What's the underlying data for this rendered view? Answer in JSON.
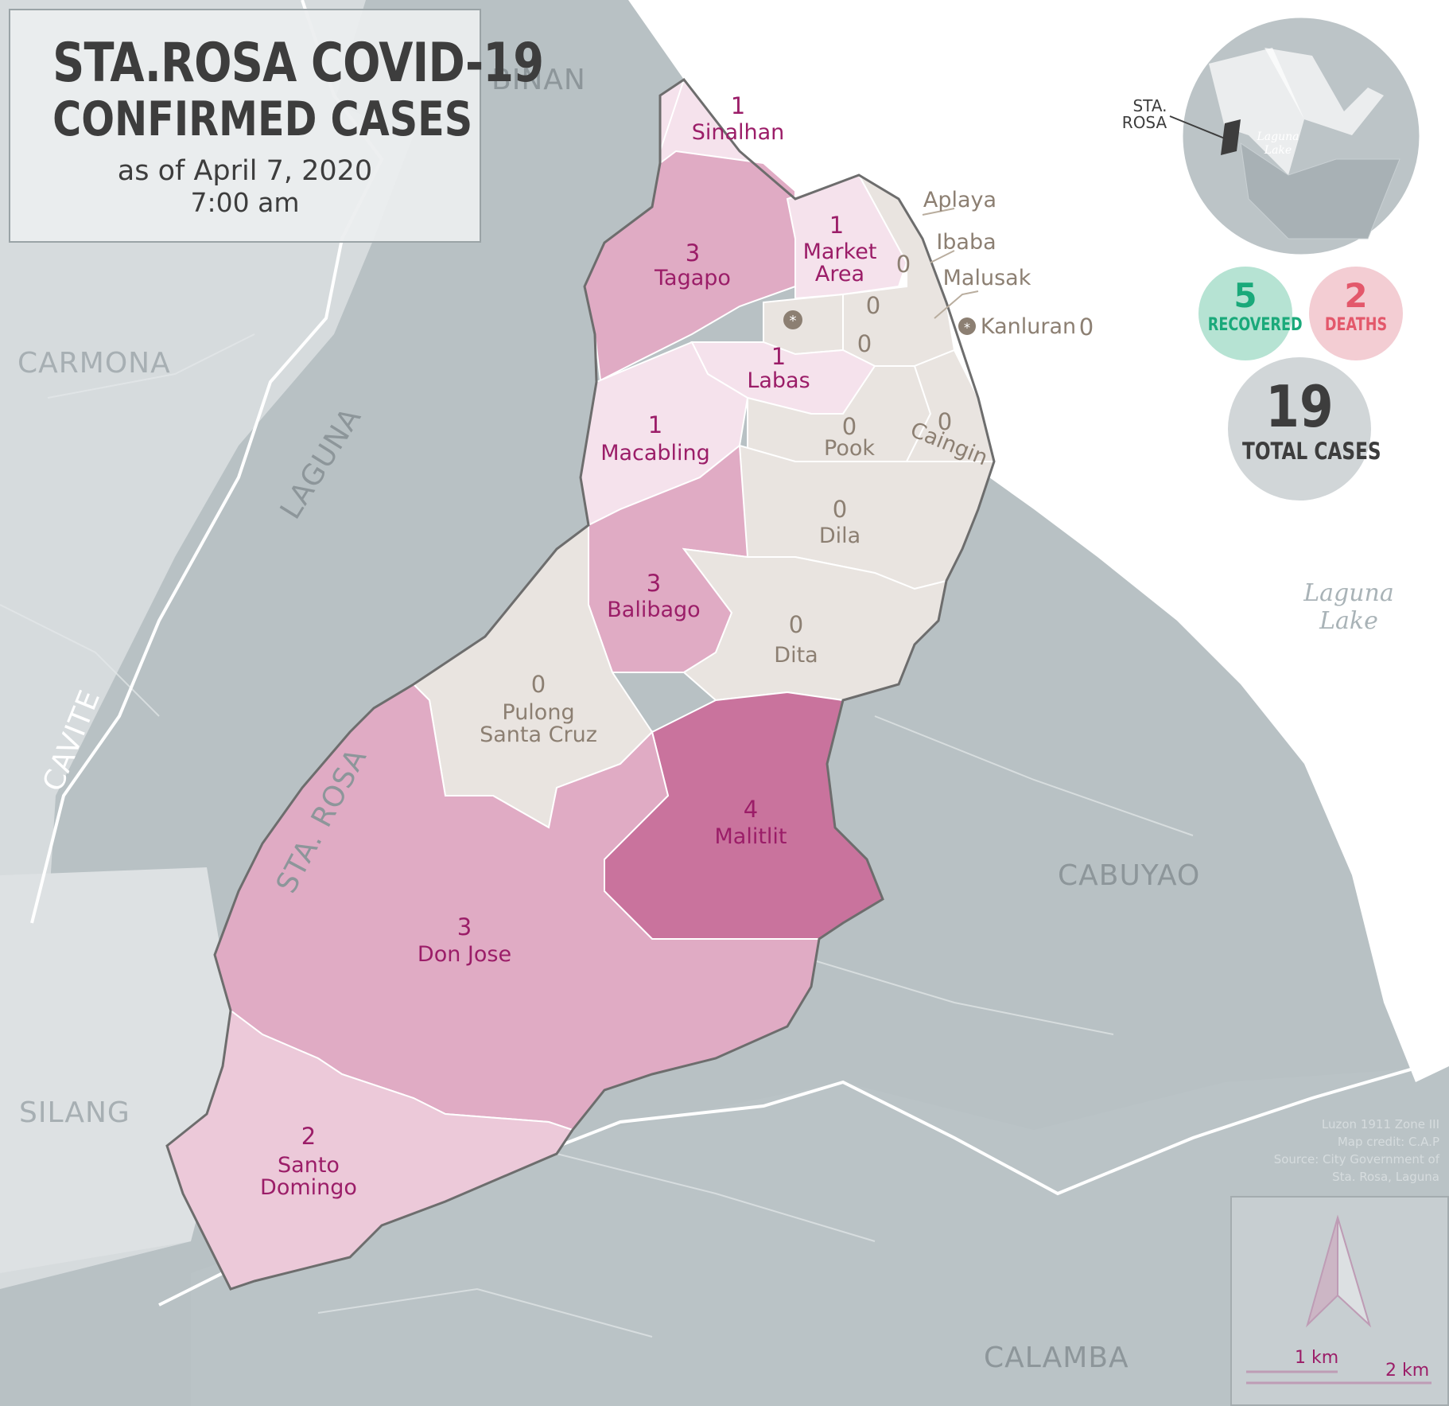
{
  "title": {
    "line1": "STA.ROSA COVID-19",
    "line2": "CONFIRMED CASES",
    "date": "as of April 7, 2020",
    "time": "7:00 am"
  },
  "stats": {
    "recovered": {
      "value": "5",
      "label": "RECOVERED",
      "color": "#1aa97a"
    },
    "deaths": {
      "value": "2",
      "label": "DEATHS",
      "color": "#e3586b"
    },
    "total": {
      "value": "19",
      "label": "TOTAL CASES"
    }
  },
  "inset": {
    "city_label_1": "STA.",
    "city_label_2": "ROSA",
    "lake_label_1": "Laguna",
    "lake_label_2": "Lake"
  },
  "neighbors": {
    "binan": "BINAN",
    "carmona": "CARMONA",
    "laguna": "LAGUNA",
    "cavite": "CAVITE",
    "sta_rosa": "STA. ROSA",
    "cabuyao": "CABUYAO",
    "silang": "SILANG",
    "calamba": "CALAMBA"
  },
  "lake": {
    "line1": "Laguna",
    "line2": "Lake"
  },
  "barangays": {
    "sinalhan": {
      "count": "1",
      "name": "Sinalhan"
    },
    "tagapo": {
      "count": "3",
      "name": "Tagapo"
    },
    "market_area": {
      "count": "1",
      "name_1": "Market",
      "name_2": "Area"
    },
    "labas": {
      "count": "1",
      "name": "Labas"
    },
    "macabling": {
      "count": "1",
      "name": "Macabling"
    },
    "pook": {
      "count": "0",
      "name": "Pook"
    },
    "caingin": {
      "count": "0",
      "name": "Caingin"
    },
    "dila": {
      "count": "0",
      "name": "Dila"
    },
    "balibago": {
      "count": "3",
      "name": "Balibago"
    },
    "dita": {
      "count": "0",
      "name": "Dita"
    },
    "pulong_santa_cruz": {
      "count": "0",
      "name_1": "Pulong",
      "name_2": "Santa Cruz"
    },
    "malitlit": {
      "count": "4",
      "name": "Malitlit"
    },
    "don_jose": {
      "count": "3",
      "name": "Don Jose"
    },
    "santo_domingo": {
      "count": "2",
      "name_1": "Santo",
      "name_2": "Domingo"
    },
    "aplaya": {
      "count": "0",
      "name": "Aplaya"
    },
    "ibaba": {
      "count": "0",
      "name": "Ibaba"
    },
    "malusak": {
      "count": "0",
      "name": "Malusak"
    },
    "kanluran": {
      "count": "0",
      "name": "Kanluran"
    }
  },
  "colors": {
    "zero": "#e9e4e0",
    "one": "#f5e2ec",
    "two": "#ecc9d9",
    "three": "#e0abc4",
    "four": "#c9739d",
    "label": "#9b1d68"
  },
  "credits": [
    "Luzon 1911 Zone III",
    "Map credit: C.A.P",
    "Source: City Government of",
    "Sta. Rosa, Laguna"
  ],
  "scale": {
    "label_1": "1 km",
    "label_2": "2 km"
  }
}
